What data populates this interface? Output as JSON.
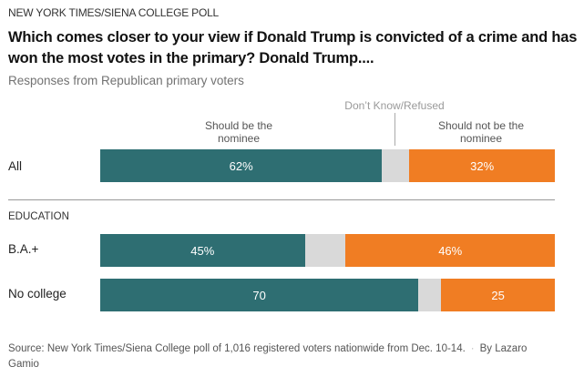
{
  "header": {
    "kicker": "NEW YORK TIMES/SIENA COLLEGE POLL",
    "title": "Which comes closer to your view if Donald Trump is convicted of a crime and has won the most votes in the primary? Donald Trump....",
    "subtitle": "Responses from Republican primary voters"
  },
  "chart_data": {
    "type": "bar",
    "orientation": "horizontal-stacked",
    "title": "Which comes closer to your view if Donald Trump is convicted of a crime and has won the most votes in the primary? Donald Trump....",
    "subtitle": "Responses from Republican primary voters",
    "series": [
      {
        "name": "Should be the nominee",
        "color": "#2e6e72"
      },
      {
        "name": "Don't Know/Refused",
        "color": "#d9d9d9"
      },
      {
        "name": "Should not be the nominee",
        "color": "#f07d23"
      }
    ],
    "legend_labels": {
      "should_be": "Should be the nominee",
      "dont_know": "Don’t Know/Refused",
      "should_not": "Should not be the nominee"
    },
    "groups": [
      {
        "section": "",
        "rows": [
          {
            "label": "All",
            "values": [
              62,
              6,
              32
            ],
            "labels": [
              "62%",
              "",
              "32%"
            ]
          }
        ]
      },
      {
        "section": "EDUCATION",
        "rows": [
          {
            "label": "B.A.+",
            "values": [
              45,
              9,
              46
            ],
            "labels": [
              "45%",
              "",
              "46%"
            ]
          },
          {
            "label": "No college",
            "values": [
              70,
              5,
              25
            ],
            "labels": [
              "70",
              "",
              "25"
            ]
          }
        ]
      }
    ],
    "xlim": [
      0,
      100
    ]
  },
  "footer": {
    "source": "Source: New York Times/Siena College poll of 1,016 registered voters nationwide from Dec. 10-14.",
    "separator": "·",
    "byline": "By Lazaro Gamio"
  }
}
